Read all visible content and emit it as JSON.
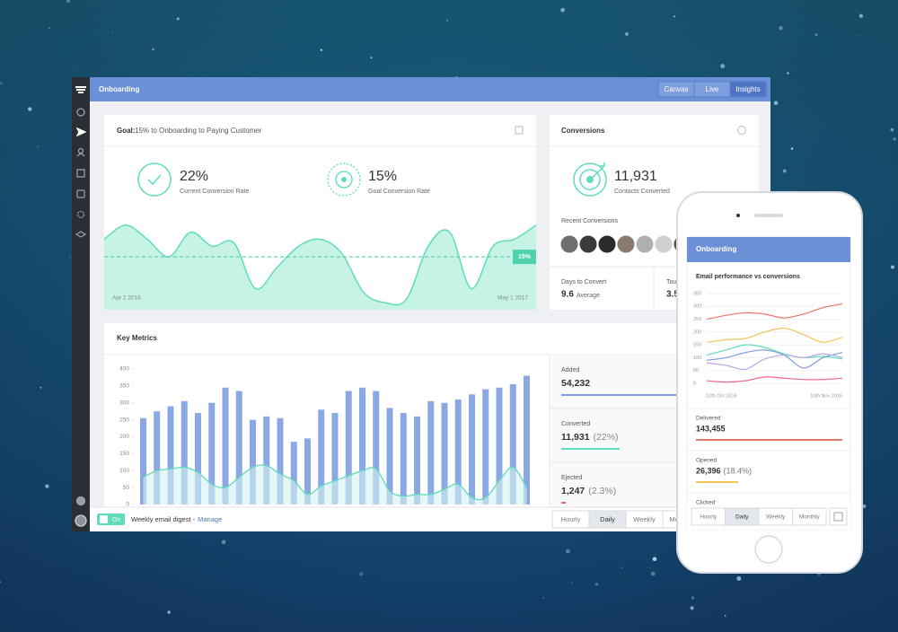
{
  "topbar": {
    "title": "Onboarding",
    "tabs": [
      "Canvas",
      "Live",
      "Insights"
    ],
    "active_tab": 2
  },
  "goal": {
    "label": "Goal:",
    "text": "15% to Onboarding to Paying Customer",
    "stats": [
      {
        "value": "22%",
        "label": "Current Conversion Rate"
      },
      {
        "value": "15%",
        "label": "Goal Conversion Rate"
      }
    ],
    "chart": {
      "type": "area",
      "color": "#5fdcb9",
      "ylim": [
        0,
        27
      ],
      "values": [
        20,
        24,
        20,
        15,
        22,
        18,
        19,
        6,
        12,
        18,
        20,
        16,
        5,
        2,
        3,
        18,
        22,
        6,
        18,
        20,
        24
      ],
      "goal_line": {
        "value": 15,
        "label": "15%"
      },
      "start_label": "Apr 2 2016",
      "end_label": "May 1 2017"
    }
  },
  "conversions": {
    "title": "Conversions",
    "value": "11,931",
    "label": "Contacts Converted",
    "recent": "Recent Conversions",
    "metrics": [
      {
        "label": "Days to Convert",
        "value": "9.6",
        "unit": "Average"
      },
      {
        "label": "Touches",
        "value": "3.5"
      }
    ]
  },
  "key_metrics": {
    "title": "Key Metrics",
    "chart": {
      "type": "bar",
      "ylim": [
        0,
        400
      ],
      "yticks": [
        0,
        50,
        100,
        150,
        200,
        250,
        300,
        350,
        400
      ],
      "series": [
        {
          "color": "#8aa8e4",
          "values": [
            255,
            275,
            290,
            305,
            270,
            300,
            345,
            335,
            250,
            260,
            255,
            185,
            195,
            280,
            270,
            335,
            345,
            335,
            285,
            270,
            260,
            305,
            300,
            310,
            325,
            340,
            345,
            355,
            380
          ]
        },
        {
          "type": "area",
          "color": "#5fdcb9",
          "values": [
            80,
            100,
            105,
            110,
            95,
            60,
            50,
            80,
            110,
            115,
            90,
            70,
            30,
            55,
            70,
            85,
            100,
            105,
            40,
            25,
            30,
            30,
            45,
            60,
            20,
            20,
            70,
            110,
            50
          ]
        }
      ]
    },
    "stats": [
      {
        "label": "Added",
        "value": "54,232",
        "color": "#7b9be0"
      },
      {
        "label": "Converted",
        "value": "11,931",
        "pct": "(22%)",
        "color": "#5fdcb9"
      },
      {
        "label": "Ejected",
        "value": "1,247",
        "pct": "(2.3%)",
        "color": "#e8677a"
      }
    ]
  },
  "footer": {
    "toggle": "On",
    "digest": "Weekly email digest -",
    "link": "Manage",
    "ranges": [
      "Hourly",
      "Daily",
      "Weekly",
      "Monthly"
    ],
    "active_range": 1
  },
  "phone": {
    "title": "Onboarding",
    "chart": {
      "type": "line",
      "title": "Email performance vs conversions",
      "ylim": [
        0,
        350
      ],
      "yticks": [
        0,
        50,
        100,
        150,
        200,
        250,
        300,
        350
      ],
      "start_label": "12th Oct 2016",
      "end_label": "10th Nov 2016",
      "series": [
        {
          "color": "#e8776a",
          "values": [
            250,
            265,
            275,
            270,
            255,
            270,
            295,
            310
          ]
        },
        {
          "color": "#f5c35a",
          "values": [
            160,
            170,
            175,
            200,
            215,
            190,
            160,
            180
          ]
        },
        {
          "color": "#5fdcb9",
          "values": [
            110,
            130,
            150,
            140,
            115,
            100,
            105,
            95
          ]
        },
        {
          "color": "#7b9be0",
          "values": [
            90,
            100,
            120,
            130,
            110,
            60,
            100,
            120
          ]
        },
        {
          "color": "#b7a6e8",
          "values": [
            80,
            70,
            55,
            95,
            110,
            100,
            115,
            100
          ]
        },
        {
          "color": "#ee6d8a",
          "values": [
            10,
            5,
            10,
            25,
            20,
            15,
            15,
            20
          ]
        }
      ]
    },
    "stats": [
      {
        "label": "Delivered",
        "value": "143,455",
        "color": "#e8776a"
      },
      {
        "label": "Opened",
        "value": "26,396",
        "pct": "(18.4%)",
        "color": "#f5c35a"
      },
      {
        "label": "Clicked"
      }
    ],
    "ranges": [
      "Hourly",
      "Daily",
      "Weekly",
      "Monthly"
    ],
    "active_range": 1
  }
}
